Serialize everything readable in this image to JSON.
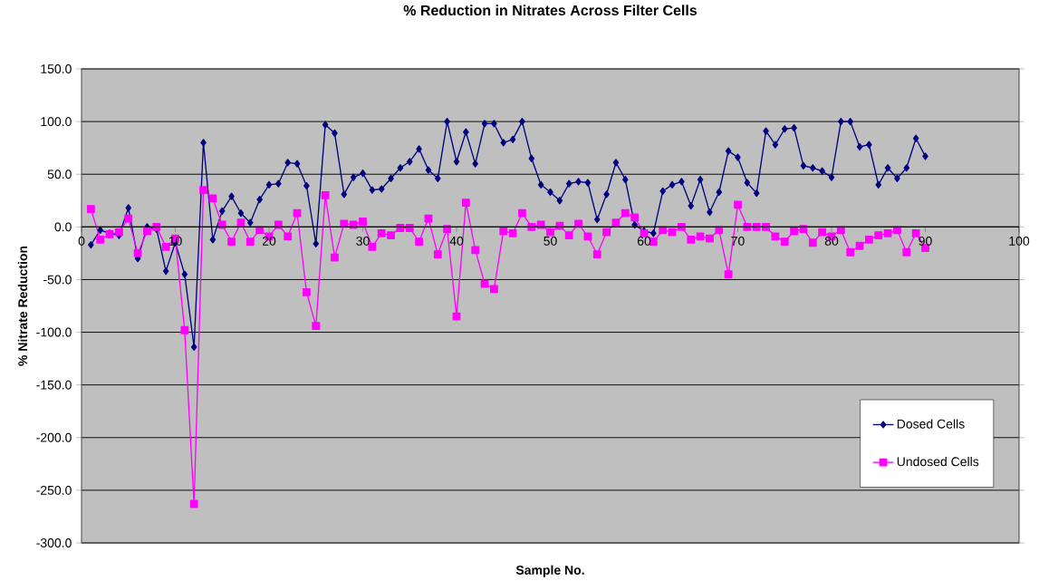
{
  "chart_data": {
    "type": "line",
    "title": "% Reduction in Nitrates Across Filter Cells",
    "xlabel": "Sample No.",
    "ylabel": "% Nitrate Reduction",
    "x": [
      1,
      2,
      3,
      4,
      5,
      6,
      7,
      8,
      9,
      10,
      11,
      12,
      13,
      14,
      15,
      16,
      17,
      18,
      19,
      20,
      21,
      22,
      23,
      24,
      25,
      26,
      27,
      28,
      29,
      30,
      31,
      32,
      33,
      34,
      35,
      36,
      37,
      38,
      39,
      40,
      41,
      42,
      43,
      44,
      45,
      46,
      47,
      48,
      49,
      50,
      51,
      52,
      53,
      54,
      55,
      56,
      57,
      58,
      59,
      60,
      61,
      62,
      63,
      64,
      65,
      66,
      67,
      68,
      69,
      70,
      71,
      72,
      73,
      74,
      75,
      76,
      77,
      78,
      79,
      80,
      81,
      82,
      83,
      84,
      85,
      86,
      87,
      88,
      89,
      90
    ],
    "series": [
      {
        "name": "Dosed Cells",
        "color": "#000080",
        "marker": "diamond",
        "values": [
          -17,
          -3,
          -6,
          -8,
          18,
          -30,
          0,
          -2,
          -42,
          -15,
          -45,
          -114,
          80,
          -12,
          15,
          29,
          13,
          4,
          26,
          40,
          41,
          61,
          60,
          39,
          -16,
          97,
          89,
          31,
          47,
          51,
          35,
          36,
          46,
          56,
          62,
          74,
          54,
          46,
          100,
          62,
          90,
          60,
          98,
          98,
          80,
          83,
          100,
          65,
          40,
          33,
          25,
          41,
          43,
          42,
          7,
          31,
          61,
          45,
          2,
          -4,
          -6,
          34,
          40,
          43,
          20,
          45,
          14,
          33,
          72,
          66,
          42,
          32,
          91,
          78,
          93,
          94,
          58,
          56,
          53,
          47,
          100,
          100,
          76,
          78,
          40,
          56,
          46,
          56,
          84,
          67
        ]
      },
      {
        "name": "Undosed Cells",
        "color": "#ff00ff",
        "marker": "square",
        "values": [
          17,
          -12,
          -7,
          -5,
          8,
          -25,
          -4,
          0,
          -19,
          -11,
          -98,
          -263,
          35,
          27,
          2,
          -14,
          4,
          -14,
          -3,
          -9,
          2,
          -9,
          13,
          -62,
          -94,
          30,
          -29,
          3,
          2,
          5,
          -19,
          -6,
          -8,
          -1,
          -1,
          -14,
          8,
          -26,
          -2,
          -85,
          23,
          -22,
          -54,
          -59,
          -4,
          -6,
          13,
          0,
          2,
          -5,
          1,
          -8,
          3,
          -9,
          -26,
          -5,
          4,
          13,
          9,
          -6,
          -14,
          -3,
          -5,
          0,
          -12,
          -9,
          -11,
          -3,
          -45,
          21,
          0,
          0,
          0,
          -9,
          -14,
          -4,
          -2,
          -15,
          -5,
          -9,
          -3,
          -24,
          -18,
          -12,
          -8,
          -6,
          -3,
          -24,
          -6,
          -20
        ]
      }
    ],
    "xlim": [
      0,
      100
    ],
    "xticks": [
      0,
      10,
      20,
      30,
      40,
      50,
      60,
      70,
      80,
      90,
      100
    ],
    "ylim": [
      -300,
      150
    ],
    "yticks": [
      {
        "value": -300,
        "label": "-300.0"
      },
      {
        "value": -250,
        "label": "-250.0"
      },
      {
        "value": -200,
        "label": "-200.0"
      },
      {
        "value": -150,
        "label": "-150.0"
      },
      {
        "value": -100,
        "label": "-100.0"
      },
      {
        "value": -50,
        "label": "-50.0"
      },
      {
        "value": 0,
        "label": "0.0"
      },
      {
        "value": 50,
        "label": "50.0"
      },
      {
        "value": 100,
        "label": "100.0"
      },
      {
        "value": 150,
        "label": "150.0"
      }
    ],
    "grid": "y",
    "legend": "bottom right",
    "line_style": "solid"
  }
}
